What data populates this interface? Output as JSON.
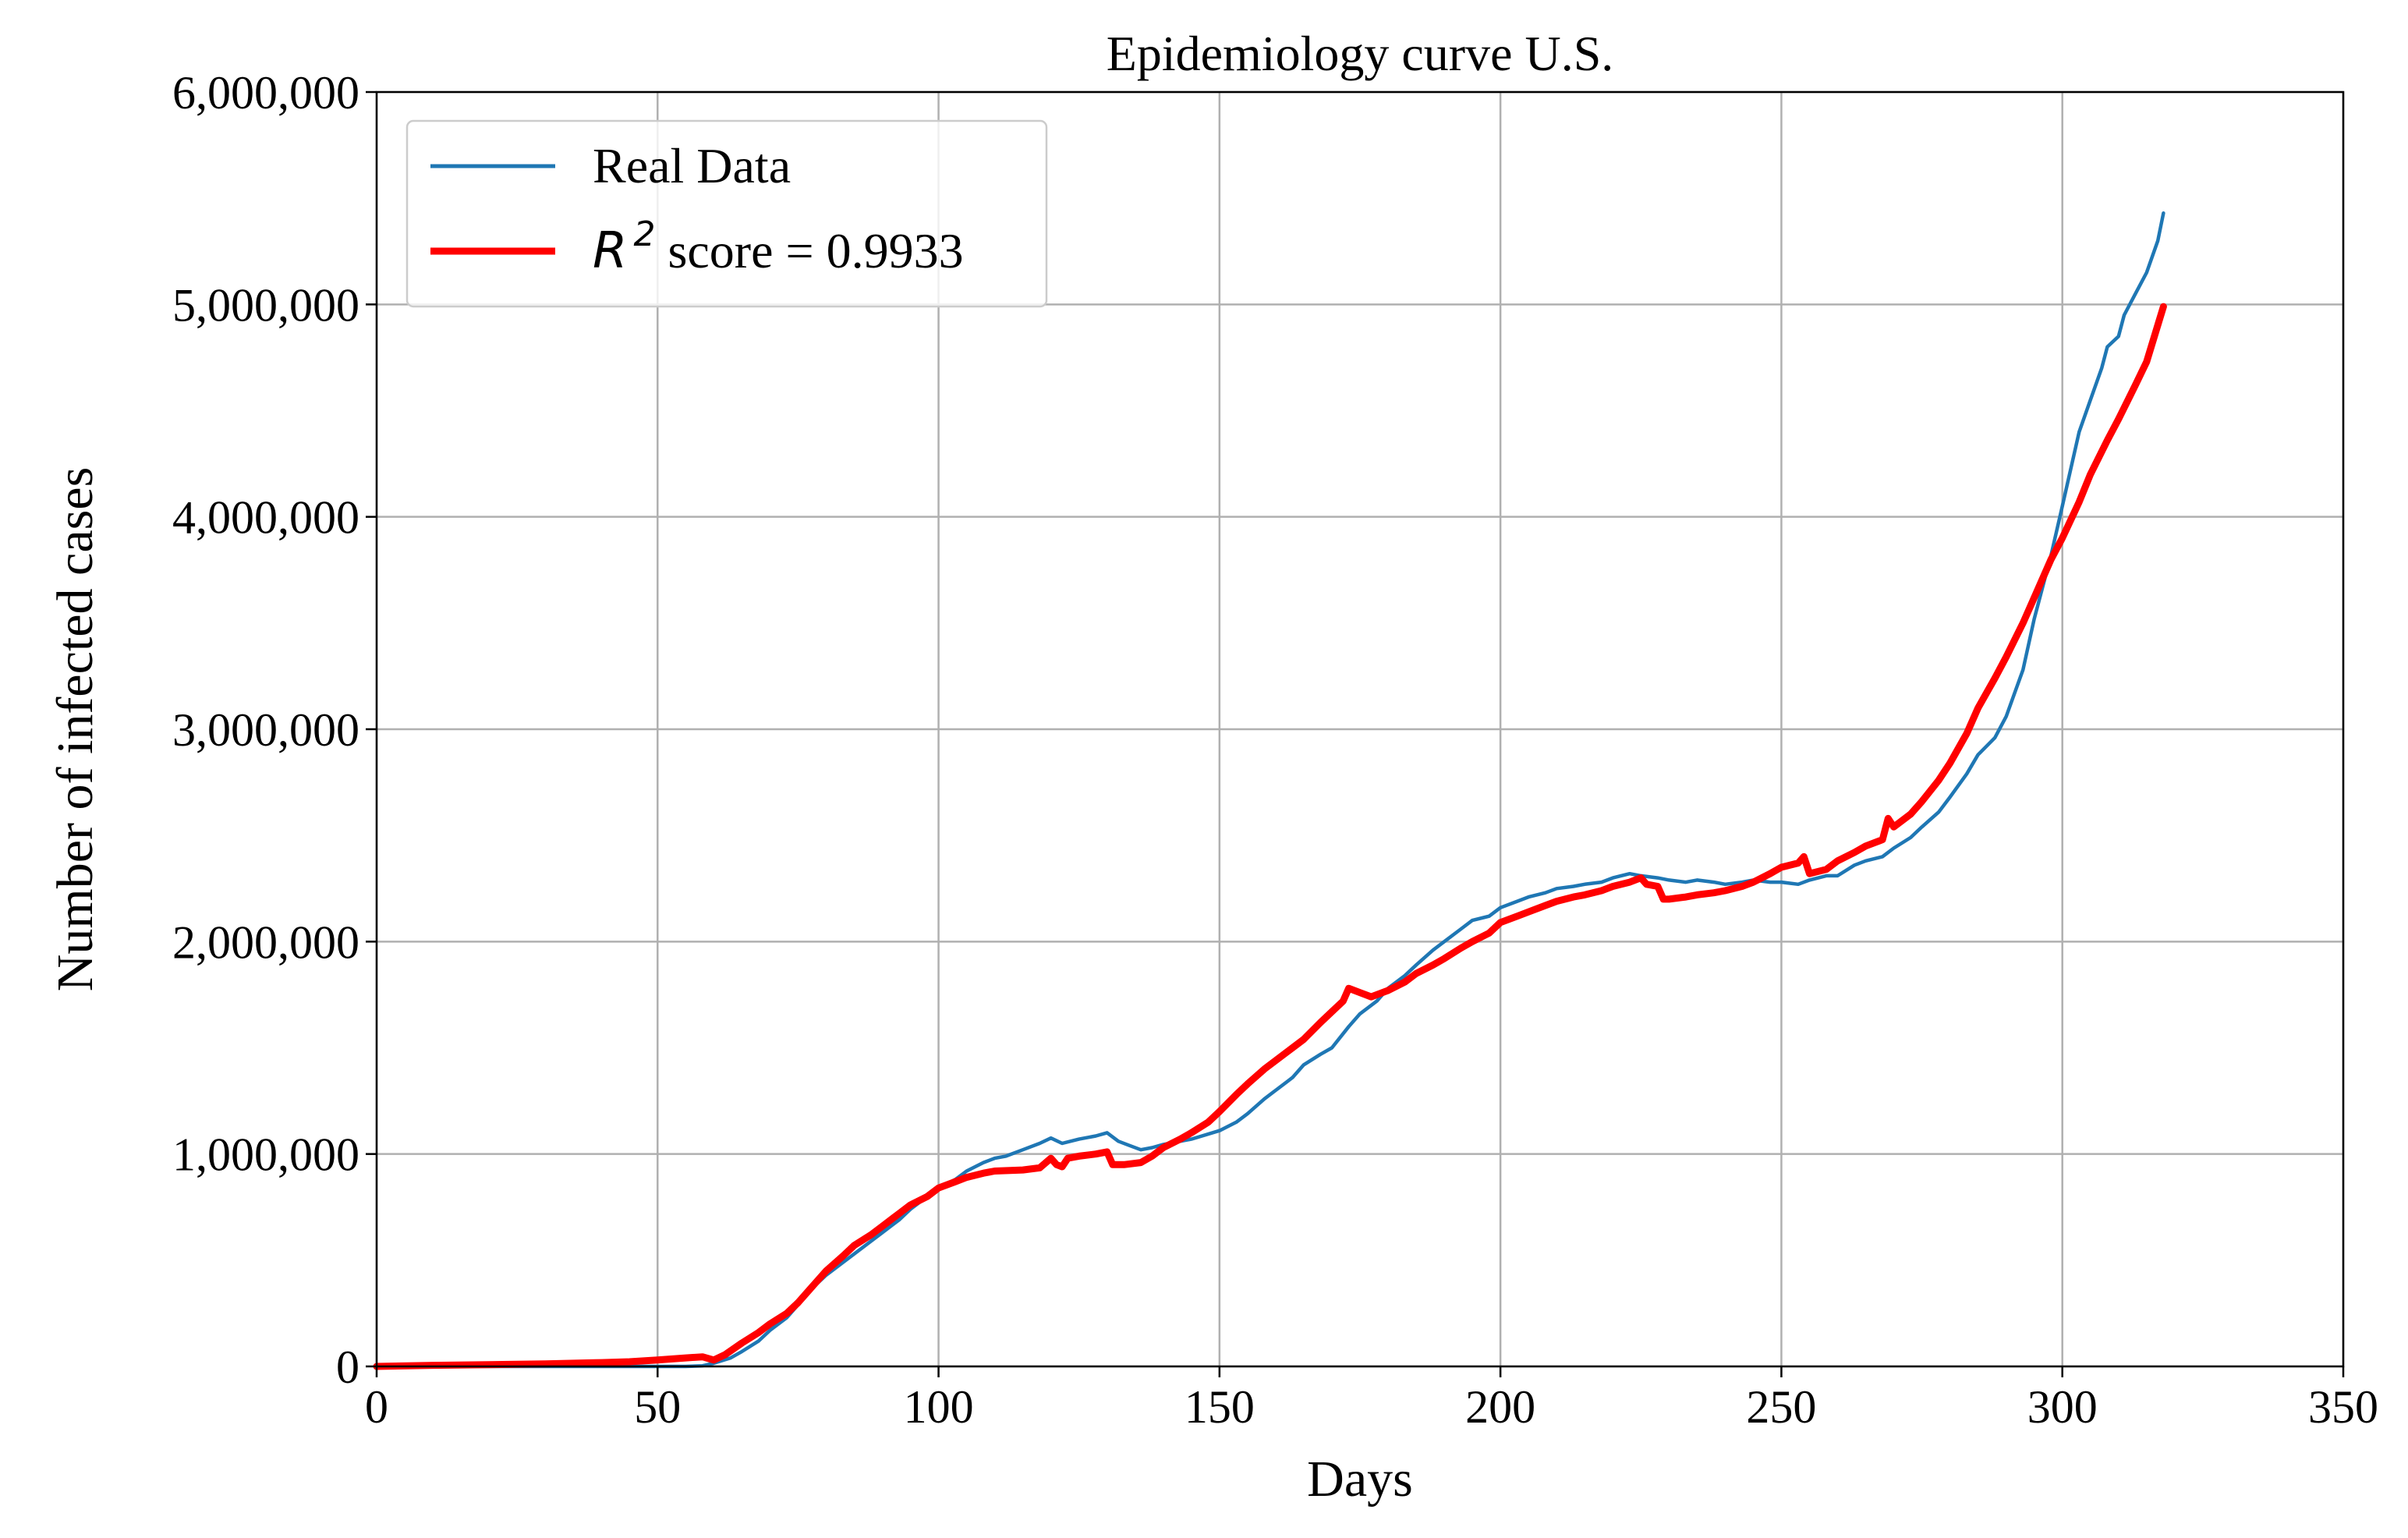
{
  "chart_data": {
    "type": "line",
    "title": "Epidemiology curve U.S.",
    "xlabel": "Days",
    "ylabel": "Number of infected cases",
    "xlim": [
      0,
      350
    ],
    "ylim": [
      0,
      6000000
    ],
    "xticks": [
      0,
      50,
      100,
      150,
      200,
      250,
      300,
      350
    ],
    "xtick_labels": [
      "0",
      "50",
      "100",
      "150",
      "200",
      "250",
      "300",
      "350"
    ],
    "yticks": [
      0,
      1000000,
      2000000,
      3000000,
      4000000,
      5000000,
      6000000
    ],
    "ytick_labels": [
      "0",
      "1,000,000",
      "2,000,000",
      "3,000,000",
      "4,000,000",
      "5,000,000",
      "6,000,000"
    ],
    "grid": true,
    "legend_position": "top-left",
    "legend": {
      "real_label": "Real Data",
      "fit_math": "R",
      "fit_exponent": "2",
      "fit_text": " score = 0.9933"
    },
    "series": [
      {
        "name": "Real Data",
        "color": "#1f77b4",
        "points": [
          [
            0,
            0
          ],
          [
            10,
            0
          ],
          [
            20,
            0
          ],
          [
            30,
            0
          ],
          [
            40,
            0
          ],
          [
            50,
            0
          ],
          [
            55,
            0
          ],
          [
            58,
            3000
          ],
          [
            60,
            15000
          ],
          [
            63,
            40000
          ],
          [
            65,
            70000
          ],
          [
            68,
            120000
          ],
          [
            70,
            170000
          ],
          [
            73,
            230000
          ],
          [
            75,
            290000
          ],
          [
            78,
            380000
          ],
          [
            80,
            430000
          ],
          [
            83,
            490000
          ],
          [
            85,
            530000
          ],
          [
            88,
            590000
          ],
          [
            90,
            630000
          ],
          [
            93,
            690000
          ],
          [
            95,
            740000
          ],
          [
            98,
            800000
          ],
          [
            100,
            840000
          ],
          [
            103,
            880000
          ],
          [
            105,
            920000
          ],
          [
            108,
            960000
          ],
          [
            110,
            980000
          ],
          [
            112,
            990000
          ],
          [
            115,
            1020000
          ],
          [
            118,
            1050000
          ],
          [
            120,
            1075000
          ],
          [
            122,
            1050000
          ],
          [
            125,
            1070000
          ],
          [
            128,
            1085000
          ],
          [
            130,
            1100000
          ],
          [
            132,
            1060000
          ],
          [
            134,
            1040000
          ],
          [
            136,
            1020000
          ],
          [
            138,
            1030000
          ],
          [
            140,
            1045000
          ],
          [
            145,
            1070000
          ],
          [
            150,
            1110000
          ],
          [
            153,
            1150000
          ],
          [
            155,
            1190000
          ],
          [
            158,
            1260000
          ],
          [
            160,
            1300000
          ],
          [
            163,
            1360000
          ],
          [
            165,
            1420000
          ],
          [
            168,
            1470000
          ],
          [
            170,
            1500000
          ],
          [
            173,
            1600000
          ],
          [
            175,
            1660000
          ],
          [
            178,
            1720000
          ],
          [
            180,
            1780000
          ],
          [
            183,
            1840000
          ],
          [
            185,
            1890000
          ],
          [
            188,
            1960000
          ],
          [
            190,
            2000000
          ],
          [
            193,
            2060000
          ],
          [
            195,
            2100000
          ],
          [
            198,
            2120000
          ],
          [
            200,
            2160000
          ],
          [
            203,
            2190000
          ],
          [
            205,
            2210000
          ],
          [
            208,
            2230000
          ],
          [
            210,
            2250000
          ],
          [
            213,
            2260000
          ],
          [
            215,
            2270000
          ],
          [
            218,
            2280000
          ],
          [
            220,
            2300000
          ],
          [
            223,
            2320000
          ],
          [
            225,
            2310000
          ],
          [
            228,
            2300000
          ],
          [
            230,
            2290000
          ],
          [
            233,
            2280000
          ],
          [
            235,
            2290000
          ],
          [
            238,
            2280000
          ],
          [
            240,
            2270000
          ],
          [
            243,
            2280000
          ],
          [
            245,
            2290000
          ],
          [
            248,
            2280000
          ],
          [
            250,
            2280000
          ],
          [
            253,
            2270000
          ],
          [
            255,
            2290000
          ],
          [
            258,
            2310000
          ],
          [
            260,
            2310000
          ],
          [
            263,
            2360000
          ],
          [
            265,
            2380000
          ],
          [
            268,
            2400000
          ],
          [
            270,
            2440000
          ],
          [
            273,
            2490000
          ],
          [
            275,
            2540000
          ],
          [
            278,
            2610000
          ],
          [
            280,
            2680000
          ],
          [
            283,
            2790000
          ],
          [
            285,
            2880000
          ],
          [
            288,
            2960000
          ],
          [
            290,
            3060000
          ],
          [
            293,
            3280000
          ],
          [
            295,
            3520000
          ],
          [
            298,
            3820000
          ],
          [
            300,
            4050000
          ],
          [
            303,
            4400000
          ],
          [
            305,
            4550000
          ],
          [
            307,
            4700000
          ],
          [
            308,
            4800000
          ],
          [
            310,
            4850000
          ],
          [
            311,
            4950000
          ],
          [
            313,
            5050000
          ],
          [
            315,
            5150000
          ],
          [
            317,
            5300000
          ],
          [
            318,
            5430000
          ]
        ]
      },
      {
        "name": "R^2 score = 0.9933",
        "color": "#ff0000",
        "points": [
          [
            0,
            0
          ],
          [
            10,
            5000
          ],
          [
            20,
            8000
          ],
          [
            30,
            12000
          ],
          [
            40,
            18000
          ],
          [
            45,
            22000
          ],
          [
            50,
            30000
          ],
          [
            55,
            40000
          ],
          [
            58,
            45000
          ],
          [
            60,
            30000
          ],
          [
            62,
            55000
          ],
          [
            65,
            110000
          ],
          [
            68,
            160000
          ],
          [
            70,
            200000
          ],
          [
            73,
            250000
          ],
          [
            75,
            300000
          ],
          [
            78,
            390000
          ],
          [
            80,
            450000
          ],
          [
            83,
            520000
          ],
          [
            85,
            570000
          ],
          [
            88,
            620000
          ],
          [
            90,
            660000
          ],
          [
            93,
            720000
          ],
          [
            95,
            760000
          ],
          [
            98,
            800000
          ],
          [
            100,
            840000
          ],
          [
            103,
            870000
          ],
          [
            105,
            890000
          ],
          [
            108,
            910000
          ],
          [
            110,
            920000
          ],
          [
            115,
            925000
          ],
          [
            118,
            935000
          ],
          [
            120,
            980000
          ],
          [
            121,
            950000
          ],
          [
            122,
            940000
          ],
          [
            123,
            980000
          ],
          [
            125,
            990000
          ],
          [
            128,
            1000000
          ],
          [
            130,
            1010000
          ],
          [
            131,
            950000
          ],
          [
            133,
            950000
          ],
          [
            136,
            960000
          ],
          [
            138,
            990000
          ],
          [
            140,
            1030000
          ],
          [
            143,
            1070000
          ],
          [
            145,
            1100000
          ],
          [
            148,
            1150000
          ],
          [
            150,
            1200000
          ],
          [
            153,
            1280000
          ],
          [
            155,
            1330000
          ],
          [
            158,
            1400000
          ],
          [
            160,
            1440000
          ],
          [
            163,
            1500000
          ],
          [
            165,
            1540000
          ],
          [
            168,
            1620000
          ],
          [
            170,
            1670000
          ],
          [
            172,
            1720000
          ],
          [
            173,
            1780000
          ],
          [
            175,
            1760000
          ],
          [
            177,
            1740000
          ],
          [
            180,
            1770000
          ],
          [
            183,
            1810000
          ],
          [
            185,
            1850000
          ],
          [
            188,
            1890000
          ],
          [
            190,
            1920000
          ],
          [
            193,
            1970000
          ],
          [
            195,
            2000000
          ],
          [
            198,
            2040000
          ],
          [
            200,
            2090000
          ],
          [
            203,
            2120000
          ],
          [
            205,
            2140000
          ],
          [
            208,
            2170000
          ],
          [
            210,
            2190000
          ],
          [
            213,
            2210000
          ],
          [
            215,
            2220000
          ],
          [
            218,
            2240000
          ],
          [
            220,
            2260000
          ],
          [
            223,
            2280000
          ],
          [
            225,
            2300000
          ],
          [
            226,
            2270000
          ],
          [
            228,
            2260000
          ],
          [
            229,
            2200000
          ],
          [
            230,
            2200000
          ],
          [
            233,
            2210000
          ],
          [
            235,
            2220000
          ],
          [
            238,
            2230000
          ],
          [
            240,
            2240000
          ],
          [
            243,
            2260000
          ],
          [
            245,
            2280000
          ],
          [
            248,
            2320000
          ],
          [
            250,
            2350000
          ],
          [
            253,
            2370000
          ],
          [
            254,
            2400000
          ],
          [
            255,
            2320000
          ],
          [
            258,
            2340000
          ],
          [
            260,
            2380000
          ],
          [
            263,
            2420000
          ],
          [
            265,
            2450000
          ],
          [
            268,
            2480000
          ],
          [
            269,
            2580000
          ],
          [
            270,
            2540000
          ],
          [
            273,
            2600000
          ],
          [
            275,
            2660000
          ],
          [
            278,
            2760000
          ],
          [
            280,
            2840000
          ],
          [
            283,
            2980000
          ],
          [
            285,
            3100000
          ],
          [
            288,
            3240000
          ],
          [
            290,
            3340000
          ],
          [
            293,
            3500000
          ],
          [
            295,
            3620000
          ],
          [
            298,
            3800000
          ],
          [
            300,
            3900000
          ],
          [
            303,
            4070000
          ],
          [
            305,
            4200000
          ],
          [
            308,
            4360000
          ],
          [
            310,
            4460000
          ],
          [
            313,
            4620000
          ],
          [
            315,
            4730000
          ],
          [
            318,
            4990000
          ]
        ]
      }
    ]
  }
}
